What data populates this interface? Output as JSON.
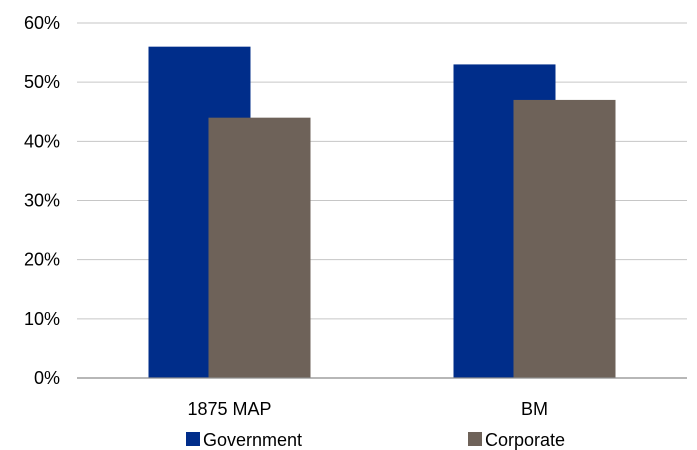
{
  "chart_data": {
    "type": "bar",
    "categories": [
      "1875 MAP",
      "BM"
    ],
    "series": [
      {
        "name": "Government",
        "values": [
          56,
          53
        ],
        "color": "#002d8a"
      },
      {
        "name": "Corporate",
        "values": [
          44,
          47
        ],
        "color": "#6e6259"
      }
    ],
    "title": "",
    "xlabel": "",
    "ylabel": "",
    "ylim": [
      0,
      60
    ],
    "yticks": [
      "0%",
      "10%",
      "20%",
      "30%",
      "40%",
      "50%",
      "60%"
    ],
    "grid": true,
    "legend": "bottom"
  }
}
